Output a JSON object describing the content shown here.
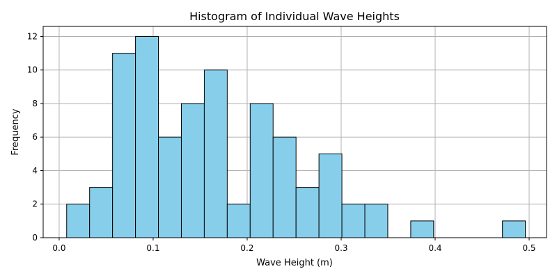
{
  "chart_data": {
    "type": "bar",
    "title": "Histogram of Individual Wave Heights",
    "xlabel": "Wave Height (m)",
    "ylabel": "Frequency",
    "xlim": [
      -0.017,
      0.5185
    ],
    "ylim": [
      0,
      12.6
    ],
    "grid": true,
    "bar_color": "#87ceeb",
    "edge_color": "#000000",
    "bin_start": 0.008,
    "bin_width": 0.0244,
    "bins": [
      {
        "x0": 0.008,
        "x1": 0.0324,
        "count": 2
      },
      {
        "x0": 0.0324,
        "x1": 0.0568,
        "count": 3
      },
      {
        "x0": 0.0568,
        "x1": 0.0812,
        "count": 11
      },
      {
        "x0": 0.0812,
        "x1": 0.1056,
        "count": 12
      },
      {
        "x0": 0.1056,
        "x1": 0.13,
        "count": 6
      },
      {
        "x0": 0.13,
        "x1": 0.1544,
        "count": 8
      },
      {
        "x0": 0.1544,
        "x1": 0.1788,
        "count": 10
      },
      {
        "x0": 0.1788,
        "x1": 0.2032,
        "count": 2
      },
      {
        "x0": 0.2032,
        "x1": 0.2276,
        "count": 8
      },
      {
        "x0": 0.2276,
        "x1": 0.252,
        "count": 6
      },
      {
        "x0": 0.252,
        "x1": 0.2764,
        "count": 3
      },
      {
        "x0": 0.2764,
        "x1": 0.3008,
        "count": 5
      },
      {
        "x0": 0.3008,
        "x1": 0.3252,
        "count": 2
      },
      {
        "x0": 0.3252,
        "x1": 0.3496,
        "count": 2
      },
      {
        "x0": 0.3496,
        "x1": 0.374,
        "count": 0
      },
      {
        "x0": 0.374,
        "x1": 0.3984,
        "count": 1
      },
      {
        "x0": 0.3984,
        "x1": 0.4228,
        "count": 0
      },
      {
        "x0": 0.4228,
        "x1": 0.4472,
        "count": 0
      },
      {
        "x0": 0.4472,
        "x1": 0.4716,
        "count": 0
      },
      {
        "x0": 0.4716,
        "x1": 0.496,
        "count": 1
      }
    ],
    "x_ticks": [
      0.0,
      0.1,
      0.2,
      0.3,
      0.4,
      0.5
    ],
    "x_tick_labels": [
      "0.0",
      "0.1",
      "0.2",
      "0.3",
      "0.4",
      "0.5"
    ],
    "y_ticks": [
      0,
      2,
      4,
      6,
      8,
      10,
      12
    ],
    "y_tick_labels": [
      "0",
      "2",
      "4",
      "6",
      "8",
      "10",
      "12"
    ]
  }
}
